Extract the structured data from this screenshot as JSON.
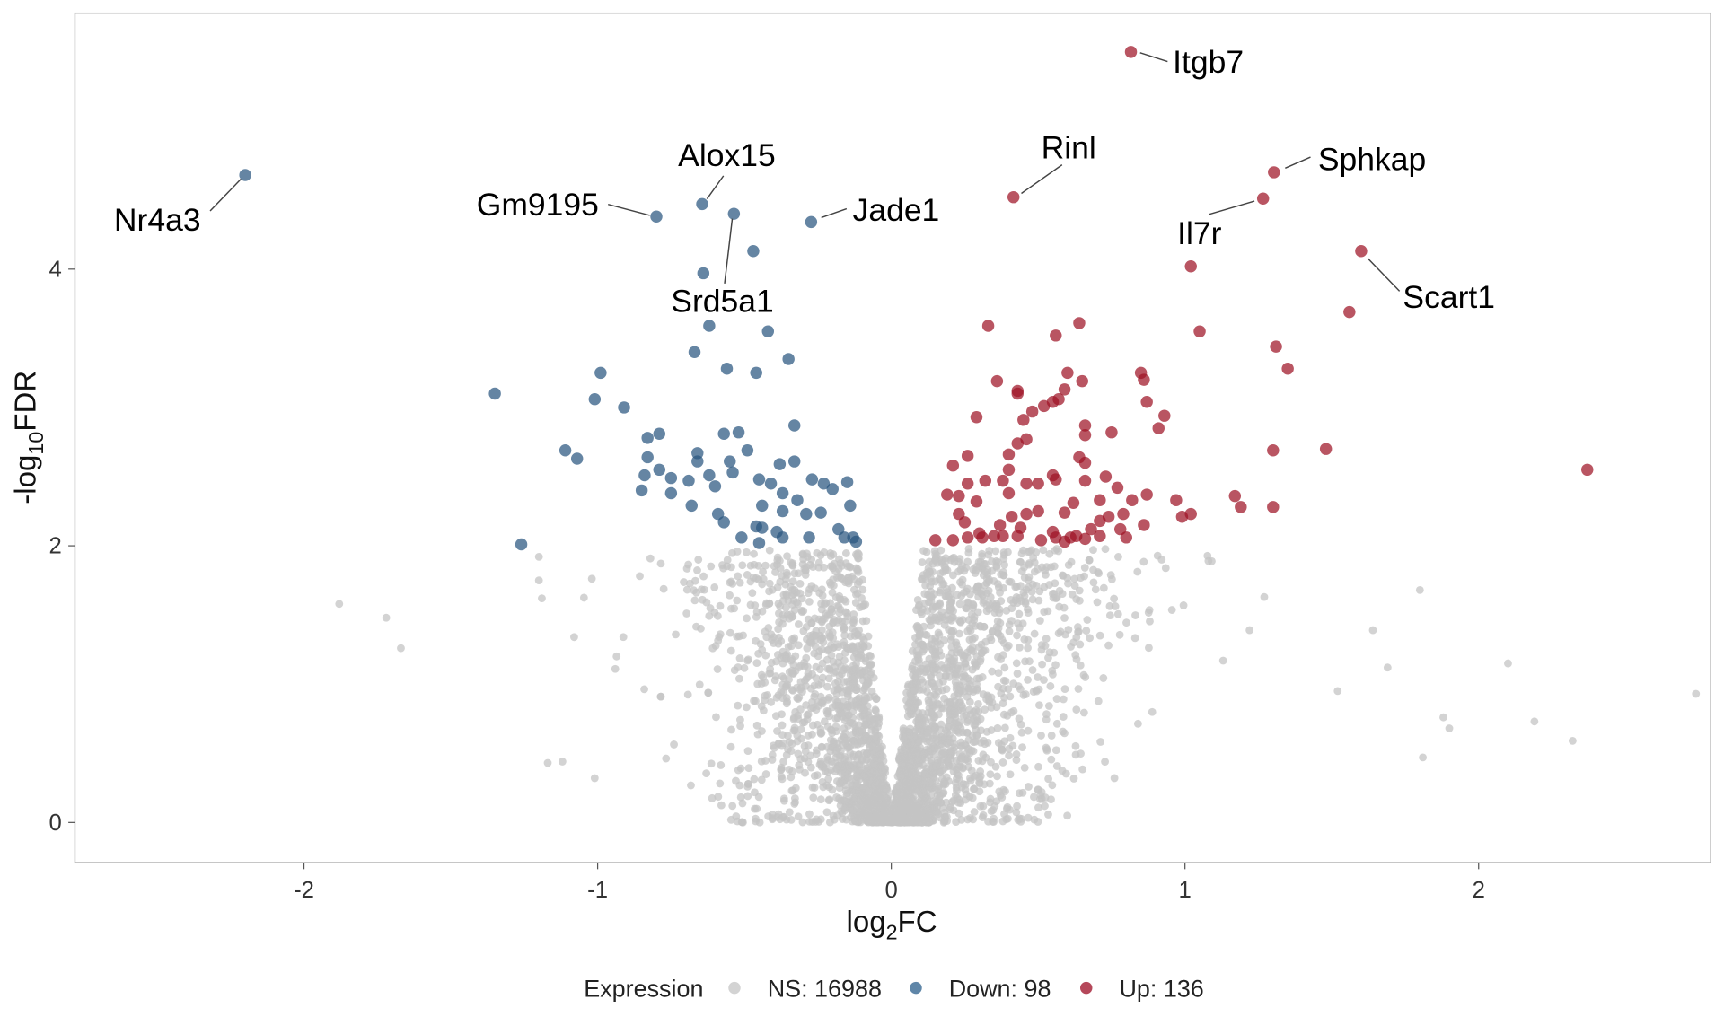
{
  "chart_data": {
    "type": "scatter",
    "title": "",
    "xlabel": {
      "prefix": "log",
      "sub": "2",
      "suffix": "FC"
    },
    "ylabel": {
      "prefix": "-log",
      "sub": "10",
      "suffix": "FDR"
    },
    "xlim": [
      -2.78,
      2.79
    ],
    "ylim": [
      -0.29,
      5.85
    ],
    "x_ticks": [
      "-2",
      "-1",
      "0",
      "1",
      "2"
    ],
    "y_ticks": [
      "0",
      "2",
      "4"
    ],
    "grid": false,
    "legend": {
      "position": "bottom",
      "title": "Expression",
      "entries": [
        {
          "label": "NS: 16988",
          "color": "#d3d3d3"
        },
        {
          "label": "Down: 98",
          "color": "#5f86a8"
        },
        {
          "label": "Up: 136",
          "color": "#b5485a"
        }
      ]
    },
    "colors": {
      "NS": "#c4c4c4",
      "Down": "#2a5680",
      "Up": "#9e1426"
    },
    "labeled_genes": [
      {
        "gene": "Itgb7",
        "x": 0.816,
        "y": 5.57,
        "group": "Up"
      },
      {
        "gene": "Nr4a3",
        "x": -2.2,
        "y": 4.68,
        "group": "Down"
      },
      {
        "gene": "Alox15",
        "x": -0.644,
        "y": 4.47,
        "group": "Down"
      },
      {
        "gene": "Gm9195",
        "x": -0.8,
        "y": 4.38,
        "group": "Down"
      },
      {
        "gene": "Srd5a1",
        "x": -0.536,
        "y": 4.4,
        "group": "Down"
      },
      {
        "gene": "Jade1",
        "x": -0.273,
        "y": 4.34,
        "group": "Down"
      },
      {
        "gene": "Rinl",
        "x": 0.416,
        "y": 4.52,
        "group": "Up"
      },
      {
        "gene": "Sphkap",
        "x": 1.303,
        "y": 4.7,
        "group": "Up"
      },
      {
        "gene": "Il7r",
        "x": 1.266,
        "y": 4.51,
        "group": "Up"
      },
      {
        "gene": "Scart1",
        "x": 1.6,
        "y": 4.13,
        "group": "Up"
      }
    ],
    "down_points": [
      [
        -0.47,
        4.13
      ],
      [
        -0.64,
        3.97
      ],
      [
        -0.62,
        3.59
      ],
      [
        -0.42,
        3.55
      ],
      [
        -0.67,
        3.4
      ],
      [
        -0.35,
        3.35
      ],
      [
        -0.56,
        3.28
      ],
      [
        -0.46,
        3.25
      ],
      [
        -0.99,
        3.25
      ],
      [
        -1.35,
        3.1
      ],
      [
        -1.01,
        3.06
      ],
      [
        -0.91,
        3.0
      ],
      [
        -0.33,
        2.87
      ],
      [
        -0.79,
        2.81
      ],
      [
        -0.83,
        2.78
      ],
      [
        -0.57,
        2.81
      ],
      [
        -0.52,
        2.82
      ],
      [
        -1.11,
        2.69
      ],
      [
        -1.07,
        2.63
      ],
      [
        -0.66,
        2.67
      ],
      [
        -0.83,
        2.64
      ],
      [
        -0.49,
        2.69
      ],
      [
        -0.66,
        2.61
      ],
      [
        -0.55,
        2.61
      ],
      [
        -0.33,
        2.61
      ],
      [
        -0.38,
        2.59
      ],
      [
        -0.79,
        2.55
      ],
      [
        -0.84,
        2.51
      ],
      [
        -0.75,
        2.49
      ],
      [
        -0.62,
        2.51
      ],
      [
        -0.54,
        2.53
      ],
      [
        -0.45,
        2.48
      ],
      [
        -0.27,
        2.48
      ],
      [
        -0.15,
        2.46
      ],
      [
        -0.69,
        2.47
      ],
      [
        -0.41,
        2.45
      ],
      [
        -0.23,
        2.45
      ],
      [
        -0.85,
        2.4
      ],
      [
        -0.75,
        2.38
      ],
      [
        -0.6,
        2.43
      ],
      [
        -0.37,
        2.38
      ],
      [
        -0.32,
        2.33
      ],
      [
        -0.2,
        2.41
      ],
      [
        -0.68,
        2.29
      ],
      [
        -0.44,
        2.29
      ],
      [
        -0.14,
        2.29
      ],
      [
        -0.59,
        2.23
      ],
      [
        -0.29,
        2.23
      ],
      [
        -0.37,
        2.25
      ],
      [
        -0.24,
        2.24
      ],
      [
        -0.57,
        2.17
      ],
      [
        -0.44,
        2.13
      ],
      [
        -0.46,
        2.14
      ],
      [
        -0.18,
        2.12
      ],
      [
        -0.16,
        2.06
      ],
      [
        -0.51,
        2.06
      ],
      [
        -0.45,
        2.02
      ],
      [
        -0.39,
        2.1
      ],
      [
        -0.37,
        2.06
      ],
      [
        -0.28,
        2.06
      ],
      [
        -0.13,
        2.06
      ],
      [
        -0.12,
        2.03
      ],
      [
        -1.26,
        2.01
      ]
    ],
    "up_points": [
      [
        0.33,
        3.59
      ],
      [
        0.64,
        3.61
      ],
      [
        0.56,
        3.52
      ],
      [
        1.02,
        4.02
      ],
      [
        1.05,
        3.55
      ],
      [
        1.31,
        3.44
      ],
      [
        1.56,
        3.69
      ],
      [
        1.35,
        3.28
      ],
      [
        0.6,
        3.25
      ],
      [
        0.36,
        3.19
      ],
      [
        0.65,
        3.19
      ],
      [
        0.85,
        3.25
      ],
      [
        0.86,
        3.2
      ],
      [
        0.43,
        3.12
      ],
      [
        0.43,
        3.1
      ],
      [
        0.57,
        3.06
      ],
      [
        0.55,
        3.04
      ],
      [
        0.59,
        3.13
      ],
      [
        0.52,
        3.01
      ],
      [
        0.87,
        3.04
      ],
      [
        0.48,
        2.97
      ],
      [
        0.45,
        2.91
      ],
      [
        0.29,
        2.93
      ],
      [
        0.93,
        2.94
      ],
      [
        0.66,
        2.87
      ],
      [
        0.66,
        2.8
      ],
      [
        0.91,
        2.85
      ],
      [
        0.75,
        2.82
      ],
      [
        0.46,
        2.77
      ],
      [
        0.43,
        2.74
      ],
      [
        1.3,
        2.69
      ],
      [
        1.48,
        2.7
      ],
      [
        0.4,
        2.66
      ],
      [
        0.64,
        2.64
      ],
      [
        0.66,
        2.6
      ],
      [
        0.26,
        2.65
      ],
      [
        0.21,
        2.58
      ],
      [
        2.37,
        2.55
      ],
      [
        0.4,
        2.55
      ],
      [
        0.55,
        2.51
      ],
      [
        0.56,
        2.48
      ],
      [
        0.73,
        2.5
      ],
      [
        0.32,
        2.47
      ],
      [
        0.38,
        2.47
      ],
      [
        0.46,
        2.45
      ],
      [
        0.5,
        2.45
      ],
      [
        0.66,
        2.47
      ],
      [
        0.77,
        2.42
      ],
      [
        0.26,
        2.45
      ],
      [
        0.87,
        2.37
      ],
      [
        1.17,
        2.36
      ],
      [
        0.19,
        2.37
      ],
      [
        0.23,
        2.36
      ],
      [
        0.97,
        2.33
      ],
      [
        0.4,
        2.38
      ],
      [
        0.82,
        2.33
      ],
      [
        0.71,
        2.33
      ],
      [
        0.29,
        2.32
      ],
      [
        0.62,
        2.31
      ],
      [
        1.19,
        2.28
      ],
      [
        1.3,
        2.28
      ],
      [
        1.02,
        2.23
      ],
      [
        0.99,
        2.21
      ],
      [
        0.5,
        2.25
      ],
      [
        0.59,
        2.24
      ],
      [
        0.79,
        2.23
      ],
      [
        0.23,
        2.23
      ],
      [
        0.41,
        2.21
      ],
      [
        0.46,
        2.23
      ],
      [
        0.74,
        2.21
      ],
      [
        0.71,
        2.18
      ],
      [
        0.86,
        2.15
      ],
      [
        0.25,
        2.17
      ],
      [
        0.37,
        2.15
      ],
      [
        0.44,
        2.13
      ],
      [
        0.78,
        2.12
      ],
      [
        0.55,
        2.1
      ],
      [
        0.68,
        2.12
      ],
      [
        0.3,
        2.09
      ],
      [
        0.35,
        2.07
      ],
      [
        0.26,
        2.06
      ],
      [
        0.43,
        2.07
      ],
      [
        0.56,
        2.06
      ],
      [
        0.8,
        2.06
      ],
      [
        0.61,
        2.06
      ],
      [
        0.15,
        2.04
      ],
      [
        0.21,
        2.04
      ],
      [
        0.51,
        2.04
      ],
      [
        0.59,
        2.03
      ],
      [
        0.66,
        2.05
      ],
      [
        0.71,
        2.07
      ],
      [
        0.63,
        2.07
      ],
      [
        0.31,
        2.06
      ],
      [
        0.38,
        2.07
      ]
    ],
    "ns_outliers": [
      [
        -1.88,
        1.58
      ],
      [
        -1.72,
        1.48
      ],
      [
        -1.67,
        1.26
      ],
      [
        -1.2,
        1.92
      ],
      [
        -1.2,
        1.75
      ],
      [
        -1.19,
        1.62
      ],
      [
        -1.17,
        0.43
      ],
      [
        -1.12,
        0.44
      ],
      [
        -1.08,
        1.34
      ],
      [
        -1.01,
        0.32
      ],
      [
        -0.94,
        1.11
      ],
      [
        2.74,
        0.93
      ],
      [
        2.1,
        1.15
      ],
      [
        2.19,
        0.73
      ],
      [
        2.32,
        0.59
      ],
      [
        1.8,
        1.68
      ],
      [
        1.69,
        1.12
      ],
      [
        1.64,
        1.39
      ],
      [
        1.52,
        0.95
      ],
      [
        1.9,
        0.68
      ],
      [
        1.81,
        0.47
      ],
      [
        1.88,
        0.76
      ],
      [
        1.27,
        1.63
      ],
      [
        1.22,
        1.39
      ],
      [
        1.13,
        1.17
      ],
      [
        1.08,
        1.89
      ]
    ]
  }
}
